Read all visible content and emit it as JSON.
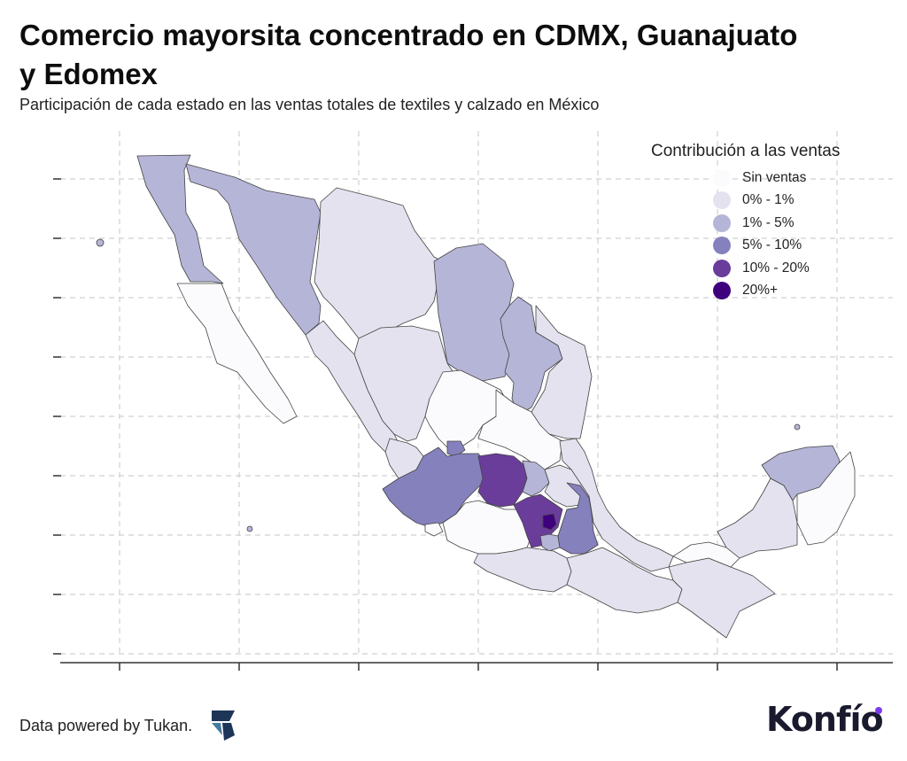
{
  "header": {
    "title": "Comercio mayorsita concentrado en CDMX, Guanajuato y Edomex",
    "subtitle": "Participación de cada estado en las ventas totales de textiles y calzado en México"
  },
  "map": {
    "region": "Mexico",
    "grid": true,
    "legend": {
      "title": "Contribución a las ventas",
      "position": "top-right",
      "categories": [
        {
          "label": "Sin ventas",
          "color": "#fbfbfd"
        },
        {
          "label": "0% - 1%",
          "color": "#e3e2ee"
        },
        {
          "label": "1% - 5%",
          "color": "#b5b5d8"
        },
        {
          "label": "5% - 10%",
          "color": "#8581bd"
        },
        {
          "label": "10% - 20%",
          "color": "#6a3d9a"
        },
        {
          "label": "20%+",
          "color": "#3f007d"
        }
      ]
    },
    "states": [
      {
        "name": "Baja California",
        "category": "1% - 5%"
      },
      {
        "name": "Baja California Sur",
        "category": "Sin ventas"
      },
      {
        "name": "Sonora",
        "category": "1% - 5%"
      },
      {
        "name": "Chihuahua",
        "category": "0% - 1%"
      },
      {
        "name": "Coahuila",
        "category": "1% - 5%"
      },
      {
        "name": "Nuevo León",
        "category": "1% - 5%"
      },
      {
        "name": "Tamaulipas",
        "category": "0% - 1%"
      },
      {
        "name": "Sinaloa",
        "category": "0% - 1%"
      },
      {
        "name": "Durango",
        "category": "0% - 1%"
      },
      {
        "name": "Zacatecas",
        "category": "Sin ventas"
      },
      {
        "name": "San Luis Potosí",
        "category": "Sin ventas"
      },
      {
        "name": "Nayarit",
        "category": "0% - 1%"
      },
      {
        "name": "Aguascalientes",
        "category": "5% - 10%"
      },
      {
        "name": "Jalisco",
        "category": "5% - 10%"
      },
      {
        "name": "Guanajuato",
        "category": "10% - 20%"
      },
      {
        "name": "Querétaro",
        "category": "1% - 5%"
      },
      {
        "name": "Hidalgo",
        "category": "0% - 1%"
      },
      {
        "name": "Colima",
        "category": "Sin ventas"
      },
      {
        "name": "Michoacán",
        "category": "Sin ventas"
      },
      {
        "name": "Estado de México",
        "category": "10% - 20%"
      },
      {
        "name": "Ciudad de México",
        "category": "20%+"
      },
      {
        "name": "Morelos",
        "category": "1% - 5%"
      },
      {
        "name": "Tlaxcala",
        "category": "5% - 10%"
      },
      {
        "name": "Puebla",
        "category": "5% - 10%"
      },
      {
        "name": "Veracruz",
        "category": "0% - 1%"
      },
      {
        "name": "Guerrero",
        "category": "0% - 1%"
      },
      {
        "name": "Oaxaca",
        "category": "0% - 1%"
      },
      {
        "name": "Chiapas",
        "category": "0% - 1%"
      },
      {
        "name": "Tabasco",
        "category": "Sin ventas"
      },
      {
        "name": "Campeche",
        "category": "0% - 1%"
      },
      {
        "name": "Yucatán",
        "category": "1% - 5%"
      },
      {
        "name": "Quintana Roo",
        "category": "Sin ventas"
      }
    ]
  },
  "footer": {
    "credit": "Data powered by Tukan.",
    "brand": "Konfío",
    "tukan_logo": "tukan-logo-icon"
  }
}
